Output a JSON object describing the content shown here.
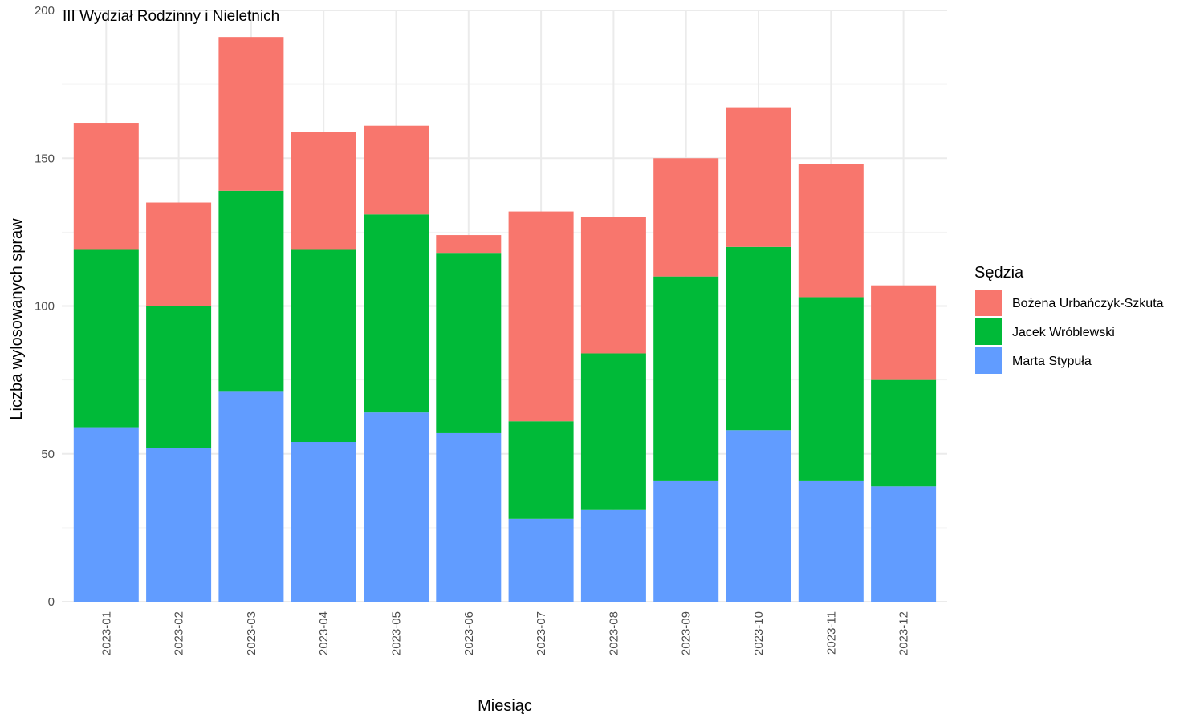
{
  "chart_data": {
    "type": "bar",
    "stacked": true,
    "title": "III Wydział Rodzinny i Nieletnich",
    "xlabel": "Miesiąc",
    "ylabel": "Liczba wylosowanych spraw",
    "ylim": [
      0,
      200
    ],
    "yticks": [
      0,
      50,
      100,
      150,
      200
    ],
    "grid": true,
    "legend_title": "Sędzia",
    "legend_position": "right",
    "categories": [
      "2023-01",
      "2023-02",
      "2023-03",
      "2023-04",
      "2023-05",
      "2023-06",
      "2023-07",
      "2023-08",
      "2023-09",
      "2023-10",
      "2023-11",
      "2023-12"
    ],
    "series": [
      {
        "name": "Marta Stypuła",
        "color": "#619CFF",
        "values": [
          59,
          52,
          71,
          54,
          64,
          57,
          28,
          31,
          41,
          58,
          41,
          39
        ]
      },
      {
        "name": "Jacek Wróblewski",
        "color": "#00BA38",
        "values": [
          60,
          48,
          68,
          65,
          67,
          61,
          33,
          53,
          69,
          62,
          62,
          36
        ]
      },
      {
        "name": "Bożena Urbańczyk-Szkuta",
        "color": "#F8766D",
        "values": [
          43,
          35,
          52,
          40,
          30,
          6,
          71,
          46,
          40,
          47,
          45,
          32
        ]
      }
    ],
    "legend_order": [
      "Bożena Urbańczyk-Szkuta",
      "Jacek Wróblewski",
      "Marta Stypuła"
    ]
  }
}
